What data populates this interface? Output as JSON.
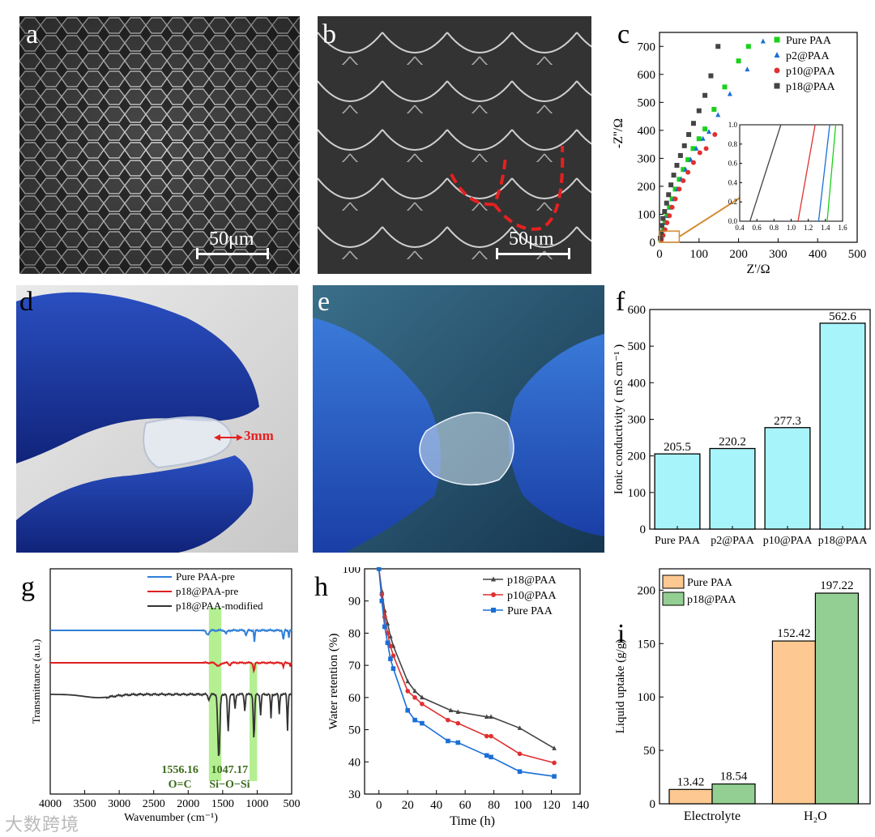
{
  "panels": {
    "a": {
      "label": "a",
      "scale_text": "50μm"
    },
    "b": {
      "label": "b",
      "scale_text": "50μm"
    },
    "c": {
      "label": "c"
    },
    "d": {
      "label": "d",
      "annotation": "3mm"
    },
    "e": {
      "label": "e"
    },
    "f": {
      "label": "f"
    },
    "g": {
      "label": "g",
      "peaks": [
        {
          "wavenumber": "1556.16",
          "bond": "O=C"
        },
        {
          "wavenumber": "1047.17",
          "bond": "Si−O−Si"
        }
      ]
    },
    "h": {
      "label": "h"
    },
    "i": {
      "label": "i"
    }
  },
  "watermark": "大数跨境",
  "colors": {
    "pure_paa": "#1ad11a",
    "p2": "#1a6fd6",
    "p10": "#e03030",
    "p18": "#444444",
    "bar_f": "#a8f4fb",
    "bar_pure": "#fdc891",
    "bar_p18": "#93cf93",
    "highlight": "#9bea6e",
    "ftir_blue": "#2f7fd8",
    "ftir_red": "#e02020",
    "ftir_black": "#333333"
  },
  "chart_data": [
    {
      "id": "c",
      "type": "scatter",
      "xlabel": "Z'/Ω",
      "ylabel": "-Z''/Ω",
      "xlim": [
        0,
        500
      ],
      "ylim": [
        0,
        750
      ],
      "xticks": [
        0,
        100,
        200,
        300,
        400,
        500
      ],
      "yticks": [
        0,
        100,
        200,
        300,
        400,
        500,
        600,
        700
      ],
      "legend_position": "top-right",
      "series": [
        {
          "name": "Pure PAA",
          "marker": "square",
          "points": [
            [
              3,
              10
            ],
            [
              6,
              25
            ],
            [
              10,
              45
            ],
            [
              14,
              70
            ],
            [
              19,
              95
            ],
            [
              25,
              125
            ],
            [
              32,
              155
            ],
            [
              40,
              190
            ],
            [
              50,
              225
            ],
            [
              60,
              260
            ],
            [
              72,
              295
            ],
            [
              85,
              335
            ],
            [
              100,
              370
            ],
            [
              115,
              405
            ],
            [
              138,
              475
            ],
            [
              165,
              555
            ],
            [
              200,
              648
            ],
            [
              225,
              700
            ]
          ]
        },
        {
          "name": "p2@PAA",
          "marker": "triangle",
          "points": [
            [
              4,
              10
            ],
            [
              8,
              25
            ],
            [
              12,
              45
            ],
            [
              17,
              70
            ],
            [
              22,
              95
            ],
            [
              29,
              125
            ],
            [
              36,
              155
            ],
            [
              45,
              190
            ],
            [
              55,
              225
            ],
            [
              66,
              260
            ],
            [
              79,
              295
            ],
            [
              93,
              335
            ],
            [
              110,
              370
            ],
            [
              125,
              395
            ],
            [
              148,
              455
            ],
            [
              178,
              530
            ],
            [
              222,
              618
            ],
            [
              262,
              718
            ]
          ]
        },
        {
          "name": "p10@PAA",
          "marker": "circle",
          "points": [
            [
              5,
              10
            ],
            [
              9,
              25
            ],
            [
              14,
              45
            ],
            [
              19,
              70
            ],
            [
              25,
              95
            ],
            [
              32,
              125
            ],
            [
              40,
              155
            ],
            [
              50,
              190
            ],
            [
              60,
              220
            ],
            [
              72,
              250
            ],
            [
              86,
              285
            ],
            [
              102,
              320
            ],
            [
              118,
              335
            ],
            [
              140,
              385
            ]
          ]
        },
        {
          "name": "p18@PAA",
          "marker": "square",
          "points": [
            [
              2,
              15
            ],
            [
              4,
              35
            ],
            [
              6,
              60
            ],
            [
              9,
              85
            ],
            [
              13,
              110
            ],
            [
              18,
              140
            ],
            [
              23,
              170
            ],
            [
              29,
              205
            ],
            [
              36,
              240
            ],
            [
              44,
              275
            ],
            [
              53,
              310
            ],
            [
              63,
              345
            ],
            [
              74,
              385
            ],
            [
              86,
              425
            ],
            [
              100,
              470
            ],
            [
              115,
              525
            ],
            [
              130,
              595
            ],
            [
              148,
              700
            ]
          ]
        }
      ],
      "inset": {
        "xlim": [
          0.4,
          1.6
        ],
        "ylim": [
          0,
          1.0
        ],
        "xticks": [
          0.4,
          0.6,
          0.8,
          1.0,
          1.2,
          1.4,
          1.6
        ],
        "yticks": [
          0.0,
          0.2,
          0.4,
          0.6,
          0.8,
          1.0
        ],
        "lines": [
          {
            "name": "p18@PAA",
            "x0": 0.52,
            "x1": 0.88
          },
          {
            "name": "p10@PAA",
            "x0": 1.08,
            "x1": 1.28
          },
          {
            "name": "p2@PAA",
            "x0": 1.32,
            "x1": 1.45
          },
          {
            "name": "Pure PAA",
            "x0": 1.42,
            "x1": 1.52
          }
        ]
      }
    },
    {
      "id": "f",
      "type": "bar",
      "ylabel": "Ionic conductivity ( mS cm⁻¹ )",
      "categories": [
        "Pure PAA",
        "p2@PAA",
        "p10@PAA",
        "p18@PAA"
      ],
      "values": [
        205.5,
        220.2,
        277.3,
        562.6
      ],
      "value_labels": [
        "205.5",
        "220.2",
        "277.3",
        "562.6"
      ],
      "ylim": [
        0,
        600
      ],
      "yticks": [
        0,
        100,
        200,
        300,
        400,
        500,
        600
      ]
    },
    {
      "id": "g",
      "type": "line",
      "xlabel": "Wavenumber (cm⁻¹)",
      "ylabel": "Transmittance (a.u.)",
      "xlim": [
        4000,
        500
      ],
      "xticks": [
        4000,
        3500,
        3000,
        2500,
        2000,
        1500,
        1000,
        500
      ],
      "legend_position": "top-right",
      "series": [
        {
          "name": "Pure PAA-pre"
        },
        {
          "name": "p18@PAA-pre"
        },
        {
          "name": "p18@PAA-modified"
        }
      ],
      "highlights": [
        1556.16,
        1047.17
      ]
    },
    {
      "id": "h",
      "type": "line",
      "xlabel": "Time (h)",
      "ylabel": "Water retention (%)",
      "xlim": [
        -10,
        140
      ],
      "ylim": [
        30,
        100
      ],
      "xticks": [
        0,
        20,
        40,
        60,
        80,
        100,
        120,
        140
      ],
      "yticks": [
        30,
        40,
        50,
        60,
        70,
        80,
        90,
        100
      ],
      "legend_position": "top-right",
      "series": [
        {
          "name": "p18@PAA",
          "marker": "triangle",
          "points": [
            [
              0,
              100
            ],
            [
              2,
              93
            ],
            [
              4,
              87
            ],
            [
              6,
              83
            ],
            [
              8,
              79
            ],
            [
              10,
              76
            ],
            [
              20,
              65
            ],
            [
              25,
              62
            ],
            [
              30,
              60
            ],
            [
              50,
              56
            ],
            [
              55,
              55.5
            ],
            [
              75,
              54
            ],
            [
              78,
              54
            ],
            [
              98,
              50.5
            ],
            [
              122,
              44.2
            ]
          ]
        },
        {
          "name": "p10@PAA",
          "marker": "circle",
          "points": [
            [
              0,
              100
            ],
            [
              2,
              92
            ],
            [
              4,
              85
            ],
            [
              6,
              80
            ],
            [
              8,
              76
            ],
            [
              10,
              73
            ],
            [
              20,
              62
            ],
            [
              25,
              60
            ],
            [
              30,
              58
            ],
            [
              48,
              53
            ],
            [
              55,
              52
            ],
            [
              75,
              48
            ],
            [
              78,
              48
            ],
            [
              98,
              42.5
            ],
            [
              122,
              39.7
            ]
          ]
        },
        {
          "name": "Pure PAA",
          "marker": "square",
          "points": [
            [
              0,
              100
            ],
            [
              2,
              90
            ],
            [
              4,
              82
            ],
            [
              6,
              77
            ],
            [
              8,
              72
            ],
            [
              10,
              69
            ],
            [
              20,
              56
            ],
            [
              25,
              53
            ],
            [
              30,
              52
            ],
            [
              48,
              46.5
            ],
            [
              55,
              46
            ],
            [
              75,
              42
            ],
            [
              78,
              41.5
            ],
            [
              98,
              37
            ],
            [
              122,
              35.5
            ]
          ]
        }
      ]
    },
    {
      "id": "i",
      "type": "bar",
      "ylabel": "Liquid uptake (g/g)",
      "categories": [
        "Electrolyte",
        "H₂O"
      ],
      "ylim": [
        0,
        220
      ],
      "yticks": [
        0,
        50,
        100,
        150,
        200
      ],
      "legend_position": "top-left",
      "series": [
        {
          "name": "Pure PAA",
          "values": [
            13.42,
            152.42
          ],
          "value_labels": [
            "13.42",
            "152.42"
          ]
        },
        {
          "name": "p18@PAA",
          "values": [
            18.54,
            197.22
          ],
          "value_labels": [
            "18.54",
            "197.22"
          ]
        }
      ]
    }
  ]
}
